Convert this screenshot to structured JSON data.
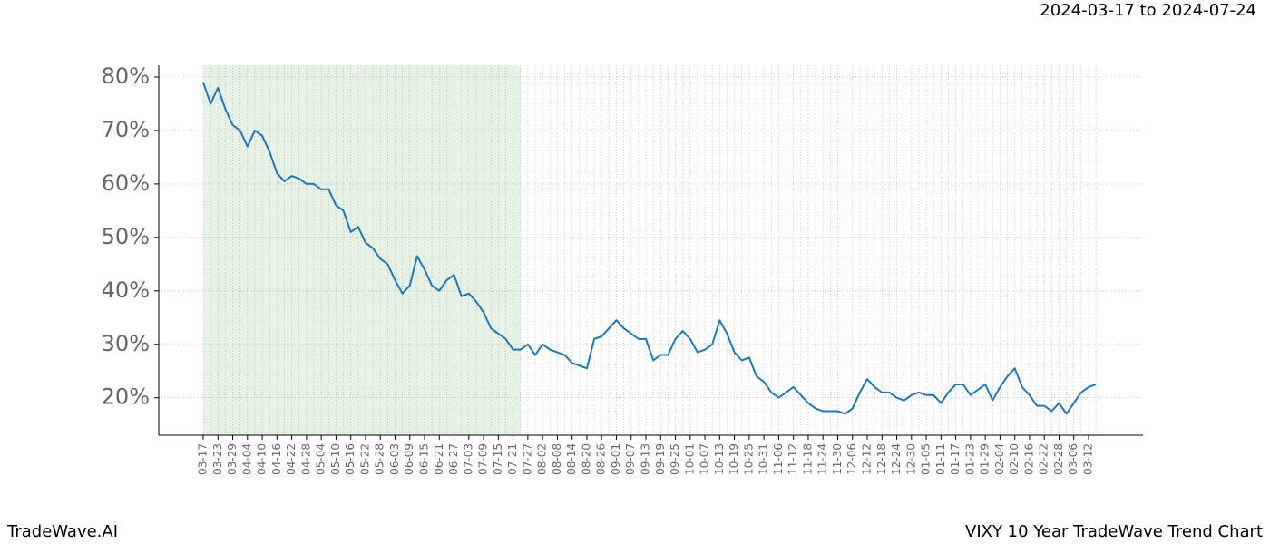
{
  "chart_data": {
    "type": "line",
    "title": "2024-03-17 to 2024-07-24",
    "footer_left": "TradeWave.AI",
    "footer_right": "VIXY 10 Year TradeWave Trend Chart",
    "categories": [
      "03-17",
      null,
      "03-23",
      null,
      "03-29",
      null,
      "04-04",
      null,
      "04-10",
      null,
      "04-16",
      null,
      "04-22",
      null,
      "04-28",
      null,
      "05-04",
      null,
      "05-10",
      null,
      "05-16",
      null,
      "05-22",
      null,
      "05-28",
      null,
      "06-03",
      null,
      "06-09",
      null,
      "06-15",
      null,
      "06-21",
      null,
      "06-27",
      null,
      "07-03",
      null,
      "07-09",
      null,
      "07-15",
      null,
      "07-21",
      null,
      "07-27",
      null,
      "08-02",
      null,
      "08-08",
      null,
      "08-14",
      null,
      "08-20",
      null,
      "08-26",
      null,
      "09-01",
      null,
      "09-07",
      null,
      "09-13",
      null,
      "09-19",
      null,
      "09-25",
      null,
      "10-01",
      null,
      "10-07",
      null,
      "10-13",
      null,
      "10-19",
      null,
      "10-25",
      null,
      "10-31",
      null,
      "11-06",
      null,
      "11-12",
      null,
      "11-18",
      null,
      "11-24",
      null,
      "11-30",
      null,
      "12-06",
      null,
      "12-12",
      null,
      "12-18",
      null,
      "12-24",
      null,
      "12-30",
      null,
      "01-05",
      null,
      "01-11",
      null,
      "01-17",
      null,
      "01-23",
      null,
      "01-29",
      null,
      "02-04",
      null,
      "02-10",
      null,
      "02-16",
      null,
      "02-22",
      null,
      "02-28",
      null,
      "03-06",
      null,
      "03-12",
      null
    ],
    "series": [
      {
        "name": "VIXY",
        "color": "#1f77b4",
        "values": [
          79,
          75,
          78,
          74,
          71,
          70,
          67,
          70,
          69,
          66,
          62,
          60.5,
          61.5,
          61,
          60,
          60,
          59,
          59,
          56,
          55,
          51,
          52,
          49,
          48,
          46,
          45,
          42,
          39.5,
          41,
          46.5,
          44,
          41,
          40,
          42,
          43,
          39,
          39.5,
          38,
          36,
          33,
          32,
          31,
          29,
          29,
          30,
          28,
          30,
          29,
          28.5,
          28,
          26.5,
          26,
          25.5,
          31,
          31.5,
          33,
          34.5,
          33,
          32,
          31,
          31,
          27,
          28,
          28,
          31,
          32.5,
          31,
          28.5,
          29,
          30,
          34.5,
          32,
          28.5,
          27,
          27.5,
          24,
          23,
          21,
          20,
          21,
          22,
          20.5,
          19,
          18,
          17.5,
          17.5,
          17.5,
          17,
          18,
          21,
          23.5,
          22,
          21,
          21,
          20,
          19.5,
          20.5,
          21,
          20.5,
          20.5,
          19,
          21,
          22.5,
          22.5,
          20.5,
          21.5,
          22.5,
          19.5,
          22,
          24,
          25.5,
          22,
          20.5,
          18.5,
          18.5,
          17.5,
          19,
          17,
          19,
          21,
          22,
          22.5
        ]
      }
    ],
    "highlight_span": [
      0,
      43
    ],
    "highlight_color": "#e6f2e6",
    "ylim": [
      13,
      82.2
    ],
    "yticks": [
      {
        "value": 20,
        "label": "20%"
      },
      {
        "value": 30,
        "label": "30%"
      },
      {
        "value": 40,
        "label": "40%"
      },
      {
        "value": 50,
        "label": "50%"
      },
      {
        "value": 60,
        "label": "60%"
      },
      {
        "value": 70,
        "label": "70%"
      },
      {
        "value": 80,
        "label": "80%"
      }
    ],
    "grid": true
  }
}
